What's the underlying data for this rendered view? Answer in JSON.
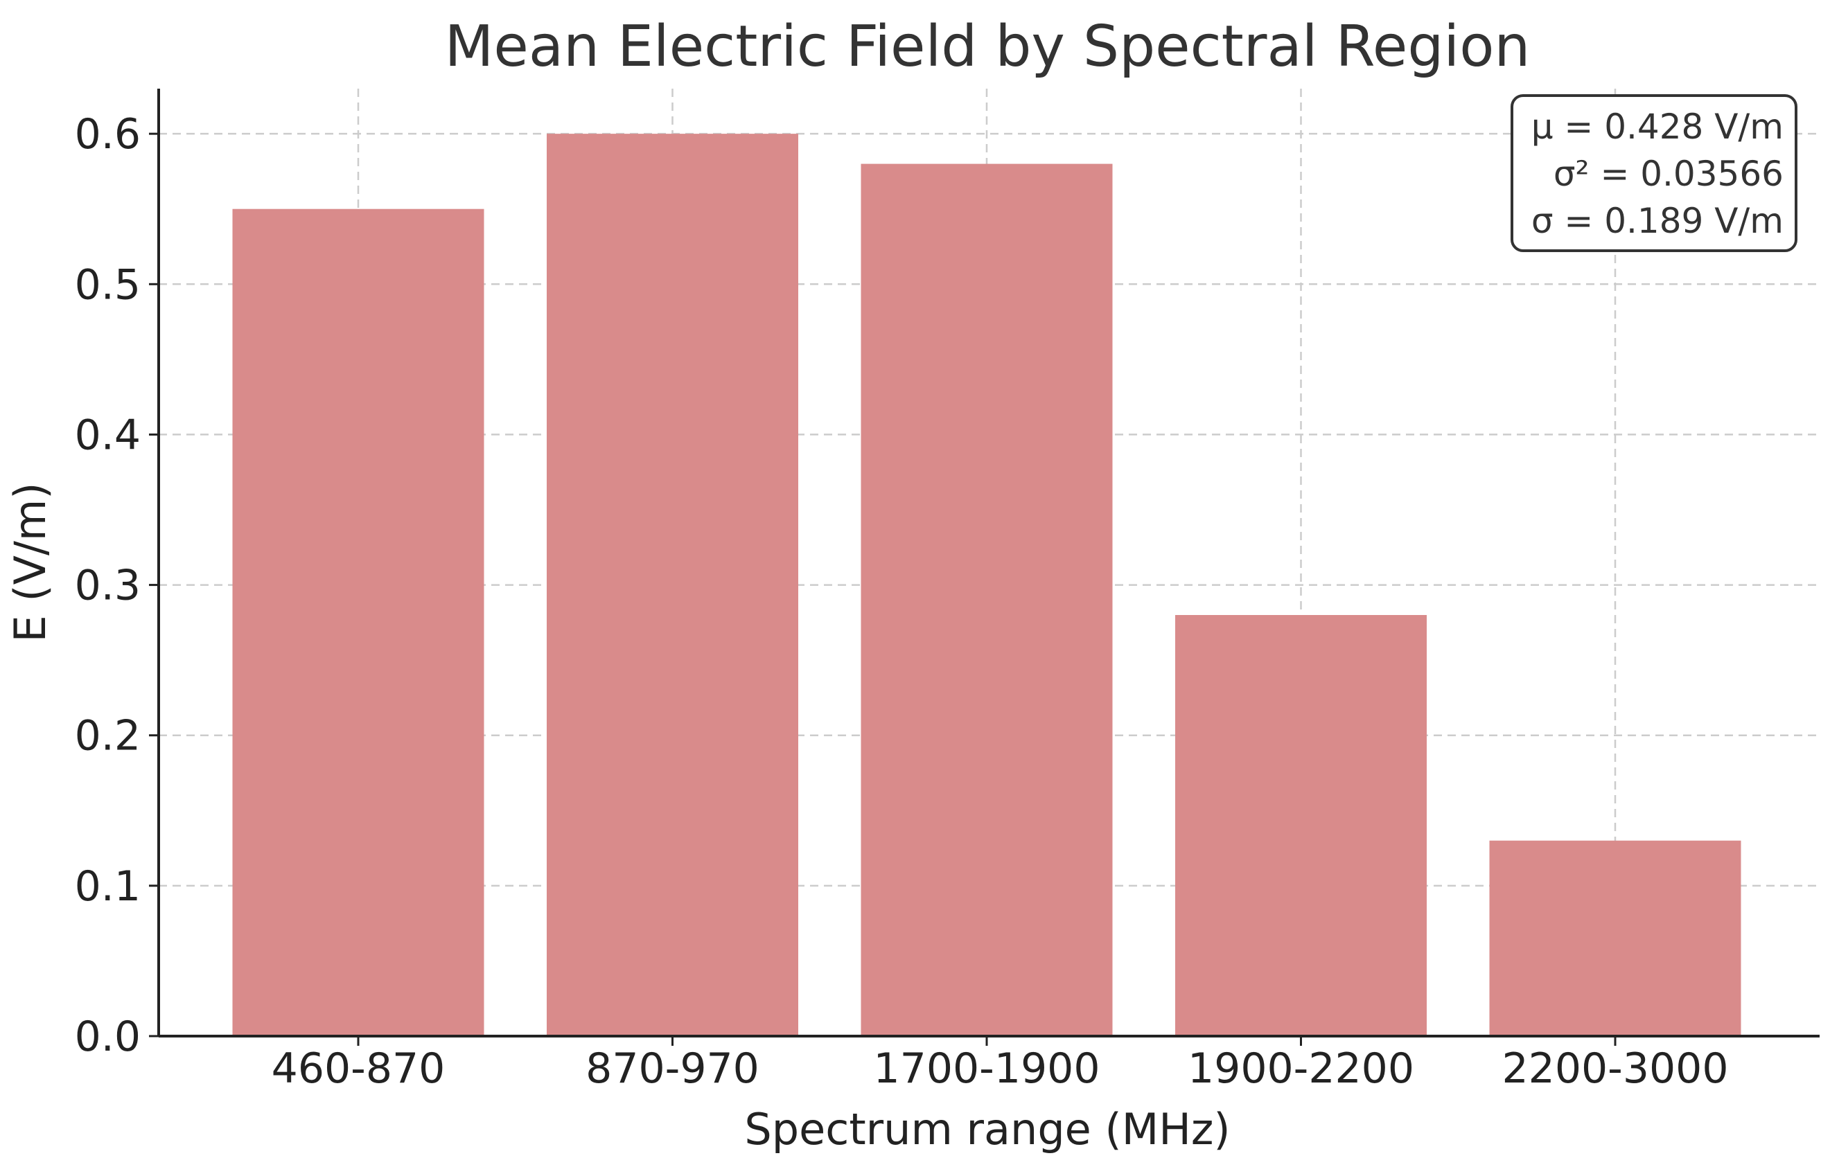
{
  "chart_data": {
    "type": "bar",
    "title": "Mean Electric Field by Spectral Region",
    "xlabel": "Spectrum range (MHz)",
    "ylabel": "E (V/m)",
    "categories": [
      "460-870",
      "870-970",
      "1700-1900",
      "1900-2200",
      "2200-3000"
    ],
    "values": [
      0.55,
      0.6,
      0.58,
      0.28,
      0.13
    ],
    "ylim": [
      0,
      0.63
    ],
    "yticks": [
      0.0,
      0.1,
      0.2,
      0.3,
      0.4,
      0.5,
      0.6
    ],
    "ytick_labels": [
      "0.0",
      "0.1",
      "0.2",
      "0.3",
      "0.4",
      "0.5",
      "0.6"
    ],
    "grid": true,
    "bar_color": "#d98b8b",
    "stats_box": {
      "placement": "top-right",
      "lines": [
        "μ = 0.428 V/m",
        "σ² = 0.03566",
        "σ = 0.189 V/m"
      ]
    }
  }
}
